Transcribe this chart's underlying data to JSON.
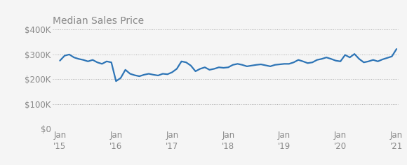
{
  "title": "Median Sales Price",
  "line_color": "#2E75B6",
  "background_color": "#f5f5f5",
  "grid_color": "#aaaaaa",
  "title_color": "#888888",
  "tick_label_color": "#888888",
  "ylim": [
    0,
    400000
  ],
  "yticks": [
    0,
    100000,
    200000,
    300000,
    400000
  ],
  "ytick_labels": [
    "$0",
    "$100K",
    "$200K",
    "$300K",
    "$400K"
  ],
  "xtick_labels": [
    "Jan\n'15",
    "Jan\n'16",
    "Jan\n'17",
    "Jan\n'18",
    "Jan\n'19",
    "Jan\n'20",
    "Jan\n'21"
  ],
  "xtick_positions": [
    0,
    12,
    24,
    36,
    48,
    60,
    72
  ],
  "values": [
    275000,
    295000,
    300000,
    288000,
    282000,
    278000,
    272000,
    278000,
    268000,
    262000,
    272000,
    268000,
    192000,
    205000,
    238000,
    222000,
    216000,
    212000,
    218000,
    222000,
    218000,
    215000,
    222000,
    220000,
    228000,
    242000,
    272000,
    268000,
    255000,
    232000,
    242000,
    248000,
    238000,
    242000,
    248000,
    246000,
    248000,
    258000,
    262000,
    258000,
    252000,
    255000,
    258000,
    260000,
    256000,
    252000,
    258000,
    260000,
    262000,
    262000,
    268000,
    278000,
    272000,
    265000,
    268000,
    278000,
    282000,
    288000,
    282000,
    275000,
    272000,
    298000,
    288000,
    302000,
    282000,
    268000,
    272000,
    278000,
    272000,
    280000,
    286000,
    292000,
    322000
  ],
  "title_fontsize": 10,
  "tick_fontsize": 8.5,
  "linewidth": 1.6
}
